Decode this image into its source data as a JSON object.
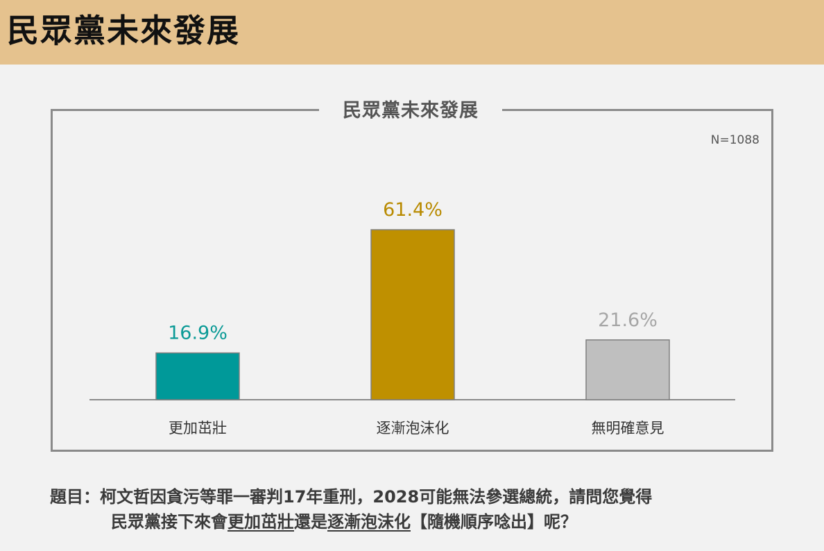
{
  "header": {
    "title": "民眾黨未來發展"
  },
  "chart_data": {
    "type": "bar",
    "title": "民眾黨未來發展",
    "note": "N=1088",
    "categories": [
      "更加茁壯",
      "逐漸泡沫化",
      "無明確意見"
    ],
    "values": [
      16.9,
      61.4,
      21.6
    ],
    "value_labels": [
      "16.9%",
      "61.4%",
      "21.6%"
    ],
    "colors": [
      "#009999",
      "#bf9000",
      "#bfbfbf"
    ],
    "label_colors": [
      "#0b9a96",
      "#b88a00",
      "#a6a6a6"
    ],
    "ylim": [
      0,
      70
    ],
    "grid": false
  },
  "question": {
    "line1": "題目：柯文哲因貪污等罪一審判17年重刑，2028可能無法參選總統，請問您覺得",
    "line2_a": "民眾黨接下來會",
    "line2_b": "更加茁壯",
    "line2_c": "還是",
    "line2_d": "逐漸泡沫化",
    "line2_e": "【隨機順序唸出】呢？"
  }
}
